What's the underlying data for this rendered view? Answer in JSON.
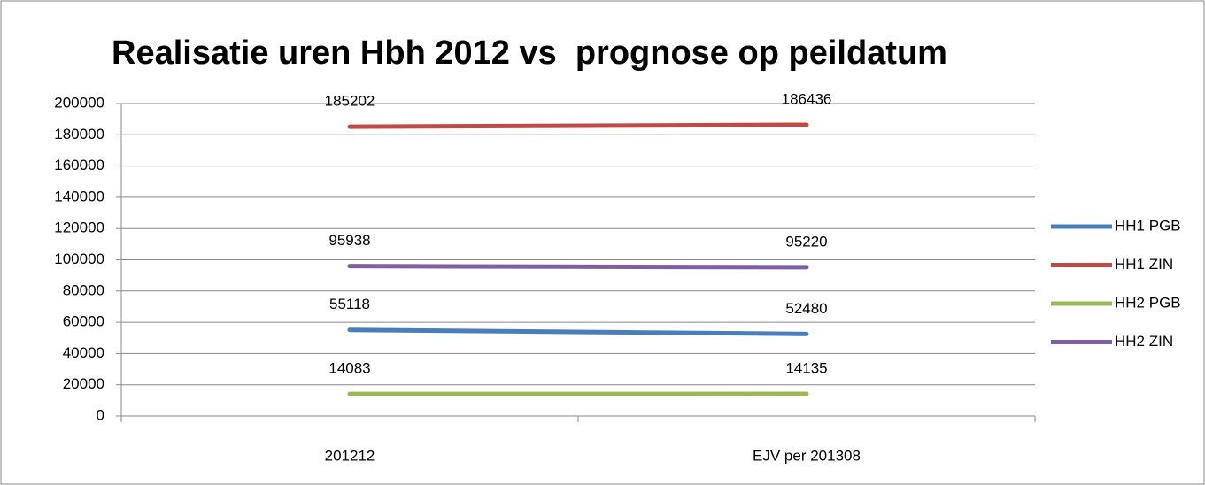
{
  "chart_data": {
    "type": "line",
    "title": "Realisatie uren Hbh 2012 vs  prognose op peildatum",
    "categories": [
      "201212",
      "EJV per 201308"
    ],
    "series": [
      {
        "name": "HH1 PGB",
        "color": "#4a7ebb",
        "values": [
          55118,
          52480
        ]
      },
      {
        "name": "HH1 ZIN",
        "color": "#be4b48",
        "values": [
          185202,
          186436
        ]
      },
      {
        "name": "HH2 PGB",
        "color": "#98b954",
        "values": [
          14083,
          14135
        ]
      },
      {
        "name": "HH2 ZIN",
        "color": "#7d60a0",
        "values": [
          95938,
          95220
        ]
      }
    ],
    "ylim": [
      0,
      200000
    ],
    "yticks": [
      0,
      20000,
      40000,
      60000,
      80000,
      100000,
      120000,
      140000,
      160000,
      180000,
      200000
    ],
    "grid": true,
    "legend": "right"
  }
}
